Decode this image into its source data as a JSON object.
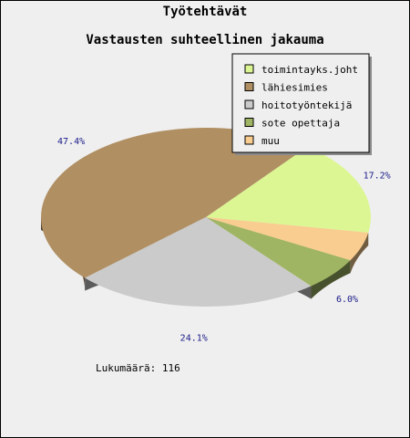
{
  "chart_data": {
    "type": "pie",
    "title": "Työtehtävät",
    "subtitle": "Vastausten suhteellinen jakauma",
    "slices": [
      {
        "label": "toimintayks.joht",
        "value": 17.2,
        "color": "#dcf693",
        "pct_label": "17.2%"
      },
      {
        "label": "lähiesimies",
        "value": 47.4,
        "color": "#b08f63",
        "pct_label": "47.4%"
      },
      {
        "label": "hoitotyöntekijä",
        "value": 24.1,
        "color": "#cbcbcb",
        "pct_label": "24.1%"
      },
      {
        "label": "sote opettaja",
        "value": 6.0,
        "color": "#9fb563",
        "pct_label": "6.0%"
      },
      {
        "label": "muu",
        "value": 5.2,
        "color": "#f9cc8f",
        "pct_label": ""
      }
    ],
    "legend_position": "top-right",
    "count_text": "Lukumäärä: 116"
  }
}
